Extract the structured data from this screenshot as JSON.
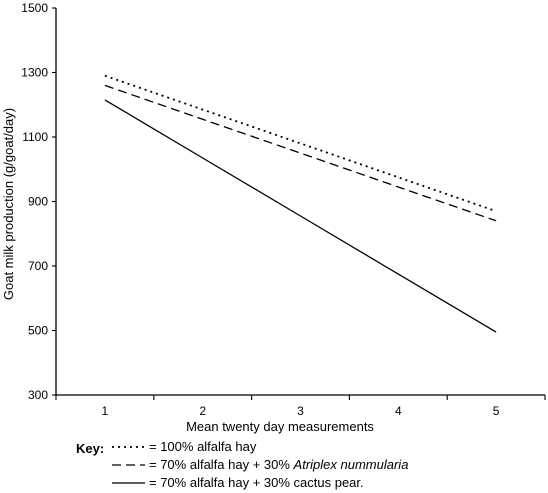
{
  "chart_data": {
    "type": "line",
    "title": "",
    "xlabel": "Mean twenty day measurements",
    "ylabel": "Goat milk production (g/goat/day)",
    "x": [
      1,
      2,
      3,
      4,
      5
    ],
    "xlim": [
      0.5,
      5.5
    ],
    "ylim": [
      300,
      1500
    ],
    "yticks": [
      300,
      500,
      700,
      900,
      1100,
      1300,
      1500
    ],
    "xticks": [
      1,
      2,
      3,
      4,
      5
    ],
    "grid": false,
    "legend_position": "bottom",
    "series": [
      {
        "name": "100% alfalfa hay",
        "line_style": "dotted",
        "color": "#000000",
        "values": [
          1290,
          1185,
          1080,
          975,
          870
        ]
      },
      {
        "name": "70% alfalfa hay + 30% Atriplex nummularia",
        "line_style": "dashed",
        "color": "#000000",
        "values": [
          1260,
          1155,
          1050,
          945,
          840
        ]
      },
      {
        "name": "70% alfalfa hay + 30% cactus pear.",
        "line_style": "solid",
        "color": "#000000",
        "values": [
          1215,
          1035,
          855,
          675,
          495
        ]
      }
    ],
    "key": {
      "title": "Key:",
      "items": [
        {
          "prefix": "= 100% alfalfa hay",
          "italic": "",
          "suffix": ""
        },
        {
          "prefix": "= 70% alfalfa hay + 30% ",
          "italic": "Atriplex nummularia",
          "suffix": ""
        },
        {
          "prefix": "= 70% alfalfa hay + 30% cactus pear.",
          "italic": "",
          "suffix": ""
        }
      ]
    }
  }
}
